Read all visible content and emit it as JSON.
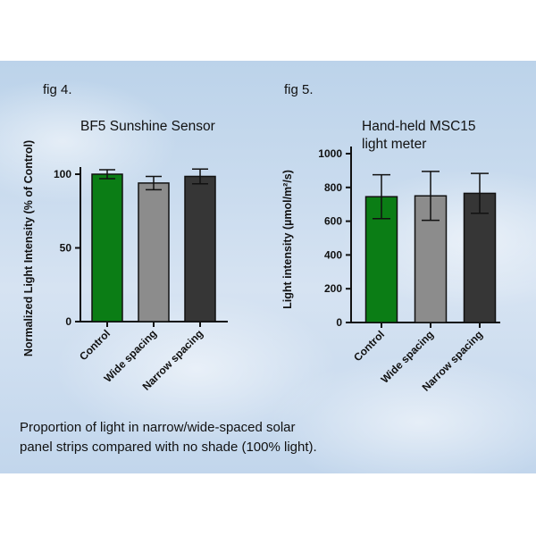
{
  "figures": [
    {
      "label": "fig 4."
    },
    {
      "label": "fig 5."
    }
  ],
  "caption": {
    "line1": "Proportion of light in narrow/wide-spaced solar",
    "line2": "panel strips compared with no shade (100% light)."
  },
  "colors": {
    "control": "#0b7d15",
    "wide": "#8c8c8c",
    "narrow": "#363636"
  },
  "chart_data": [
    {
      "type": "bar",
      "title": "BF5 Sunshine Sensor",
      "xlabel": "",
      "ylabel": "Normalized Light Intensity (% of Control)",
      "categories": [
        "Control",
        "Wide spacing",
        "Narrow spacing"
      ],
      "values": [
        100,
        94,
        98.5
      ],
      "error": [
        3,
        4.5,
        5
      ],
      "ylim": [
        0,
        100
      ],
      "yticks": [
        0,
        50,
        100
      ],
      "grid": false
    },
    {
      "type": "bar",
      "title_lines": [
        "Hand-held MSC15",
        "light meter"
      ],
      "xlabel": "",
      "ylabel": "Light intensity (µmol/m²/s)",
      "categories": [
        "Control",
        "Wide spacing",
        "Narrow spacing"
      ],
      "values": [
        745,
        750,
        765
      ],
      "error": [
        130,
        145,
        118
      ],
      "ylim": [
        0,
        1000
      ],
      "yticks": [
        0,
        200,
        400,
        600,
        800,
        1000
      ],
      "grid": false
    }
  ]
}
